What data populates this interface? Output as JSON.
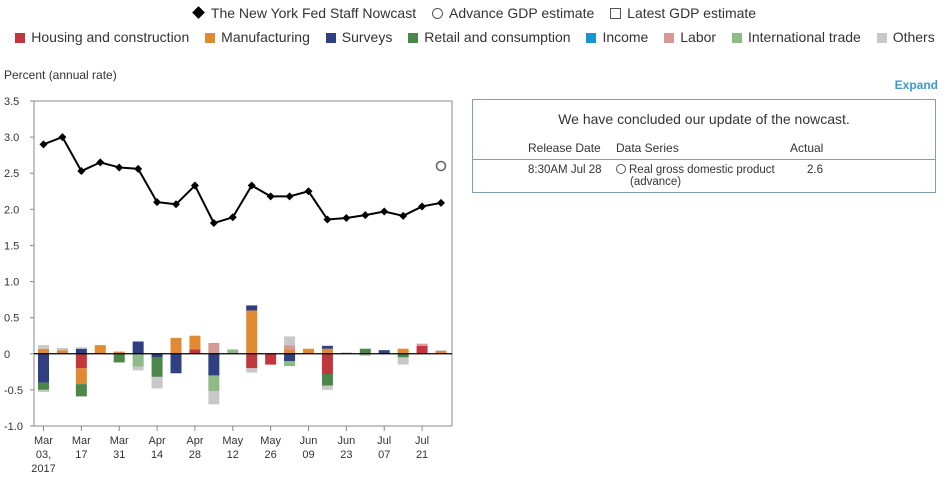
{
  "legend": {
    "series": [
      {
        "label": "The New York Fed Staff Nowcast",
        "icon": "diamond"
      },
      {
        "label": "Advance GDP estimate",
        "icon": "circle"
      },
      {
        "label": "Latest GDP estimate",
        "icon": "square"
      }
    ],
    "components": [
      {
        "label": "Housing and construction",
        "color": "#c0373d"
      },
      {
        "label": "Manufacturing",
        "color": "#e08a33"
      },
      {
        "label": "Surveys",
        "color": "#2f3f80"
      },
      {
        "label": "Retail and consumption",
        "color": "#4b8748"
      },
      {
        "label": "Income",
        "color": "#1a94d0"
      },
      {
        "label": "Labor",
        "color": "#d59a95"
      },
      {
        "label": "International trade",
        "color": "#8fb987"
      },
      {
        "label": "Others",
        "color": "#c8c8c8"
      }
    ]
  },
  "yaxis_title": "Percent (annual rate)",
  "expand_label": "Expand",
  "panel": {
    "message": "We have concluded our update of the nowcast.",
    "headers": {
      "release_date": "Release Date",
      "data_series": "Data Series",
      "actual": "Actual"
    },
    "rows": [
      {
        "release_date": "8:30AM Jul 28",
        "series_line1": "Real gross domestic product",
        "series_line2": "(advance)",
        "actual": "2.6"
      }
    ]
  },
  "chart_data": {
    "type": "bar+line",
    "ylim": [
      -1.0,
      3.5
    ],
    "yticks": [
      "3.5",
      "3.0",
      "2.5",
      "2.0",
      "1.5",
      "1.0",
      "0.5",
      "0",
      "-0.5",
      "-1.0"
    ],
    "xticks": [
      {
        "index": 0,
        "lines": [
          "Mar",
          "03,",
          "2017"
        ]
      },
      {
        "index": 2,
        "lines": [
          "Mar",
          "17"
        ]
      },
      {
        "index": 4,
        "lines": [
          "Mar",
          "31"
        ]
      },
      {
        "index": 6,
        "lines": [
          "Apr",
          "14"
        ]
      },
      {
        "index": 8,
        "lines": [
          "Apr",
          "28"
        ]
      },
      {
        "index": 10,
        "lines": [
          "May",
          "12"
        ]
      },
      {
        "index": 12,
        "lines": [
          "May",
          "26"
        ]
      },
      {
        "index": 14,
        "lines": [
          "Jun",
          "09"
        ]
      },
      {
        "index": 16,
        "lines": [
          "Jun",
          "23"
        ]
      },
      {
        "index": 18,
        "lines": [
          "Jul",
          "07"
        ]
      },
      {
        "index": 20,
        "lines": [
          "Jul",
          "21"
        ]
      }
    ],
    "nowcast": [
      2.9,
      3.0,
      2.53,
      2.65,
      2.58,
      2.56,
      2.1,
      2.07,
      2.33,
      1.81,
      1.89,
      2.33,
      2.18,
      2.18,
      2.25,
      1.86,
      1.88,
      1.92,
      1.97,
      1.91,
      2.04,
      2.09
    ],
    "advance_gdp": {
      "index": 21,
      "value": 2.6
    },
    "bars": [
      [
        {
          "c": "Manufacturing",
          "v": 0.07
        },
        {
          "c": "Others",
          "v": 0.05
        },
        {
          "c": "Surveys",
          "v": -0.4
        },
        {
          "c": "Retail and consumption",
          "v": -0.1
        },
        {
          "c": "Others",
          "v": -0.03
        }
      ],
      [
        {
          "c": "Manufacturing",
          "v": 0.05
        },
        {
          "c": "Others",
          "v": 0.03
        }
      ],
      [
        {
          "c": "Surveys",
          "v": 0.07
        },
        {
          "c": "Others",
          "v": 0.02
        },
        {
          "c": "Housing and construction",
          "v": -0.2
        },
        {
          "c": "Manufacturing",
          "v": -0.22
        },
        {
          "c": "Retail and consumption",
          "v": -0.17
        }
      ],
      [
        {
          "c": "Manufacturing",
          "v": 0.12
        }
      ],
      [
        {
          "c": "Manufacturing",
          "v": 0.03
        },
        {
          "c": "Retail and consumption",
          "v": -0.12
        }
      ],
      [
        {
          "c": "Surveys",
          "v": 0.17
        },
        {
          "c": "International trade",
          "v": -0.18
        },
        {
          "c": "Others",
          "v": -0.05
        }
      ],
      [
        {
          "c": "Surveys",
          "v": -0.05
        },
        {
          "c": "Retail and consumption",
          "v": -0.27
        },
        {
          "c": "Others",
          "v": -0.16
        }
      ],
      [
        {
          "c": "Manufacturing",
          "v": 0.22
        },
        {
          "c": "Surveys",
          "v": -0.27
        }
      ],
      [
        {
          "c": "Housing and construction",
          "v": 0.06
        },
        {
          "c": "Manufacturing",
          "v": 0.19
        }
      ],
      [
        {
          "c": "Labor",
          "v": 0.15
        },
        {
          "c": "Surveys",
          "v": -0.3
        },
        {
          "c": "International trade",
          "v": -0.22
        },
        {
          "c": "Others",
          "v": -0.18
        }
      ],
      [
        {
          "c": "International trade",
          "v": 0.06
        }
      ],
      [
        {
          "c": "Manufacturing",
          "v": 0.6
        },
        {
          "c": "Surveys",
          "v": 0.07
        },
        {
          "c": "Housing and construction",
          "v": -0.2
        },
        {
          "c": "Others",
          "v": -0.06
        }
      ],
      [
        {
          "c": "Housing and construction",
          "v": -0.15
        }
      ],
      [
        {
          "c": "Manufacturing",
          "v": 0.06
        },
        {
          "c": "Labor",
          "v": 0.06
        },
        {
          "c": "Others",
          "v": 0.12
        },
        {
          "c": "Surveys",
          "v": -0.1
        },
        {
          "c": "International trade",
          "v": -0.07
        }
      ],
      [
        {
          "c": "Manufacturing",
          "v": 0.07
        }
      ],
      [
        {
          "c": "Manufacturing",
          "v": 0.07
        },
        {
          "c": "Surveys",
          "v": 0.04
        },
        {
          "c": "Housing and construction",
          "v": -0.28
        },
        {
          "c": "Retail and consumption",
          "v": -0.16
        },
        {
          "c": "Others",
          "v": -0.06
        }
      ],
      [
        {
          "c": "Others",
          "v": 0.02
        }
      ],
      [
        {
          "c": "Retail and consumption",
          "v": 0.07
        },
        {
          "c": "Others",
          "v": -0.03
        }
      ],
      [
        {
          "c": "Surveys",
          "v": 0.05
        }
      ],
      [
        {
          "c": "Manufacturing",
          "v": 0.07
        },
        {
          "c": "Retail and consumption",
          "v": -0.05
        },
        {
          "c": "Others",
          "v": -0.1
        }
      ],
      [
        {
          "c": "Housing and construction",
          "v": 0.11
        },
        {
          "c": "Labor",
          "v": 0.03
        }
      ],
      [
        {
          "c": "Manufacturing",
          "v": 0.04
        },
        {
          "c": "Others",
          "v": 0.01
        }
      ]
    ]
  }
}
